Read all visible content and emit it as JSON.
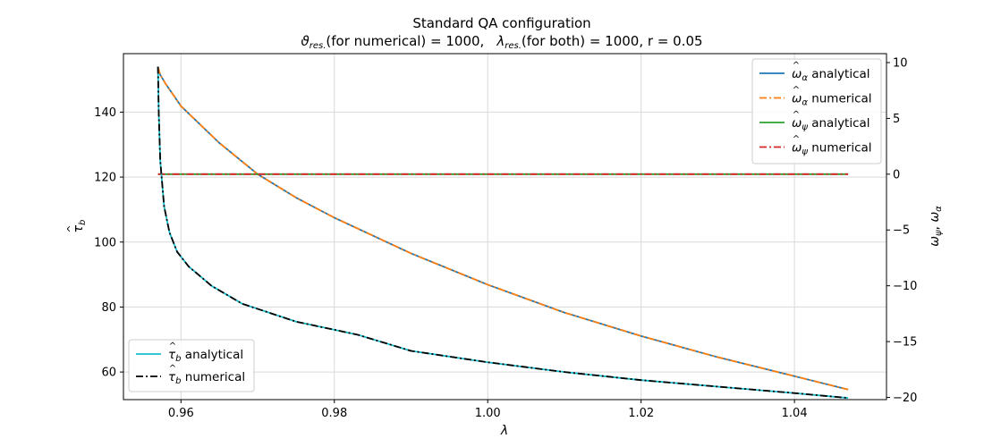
{
  "chart_data": {
    "type": "line",
    "title": "Standard QA configuration",
    "subtitle": {
      "theta_symbol": "ϑ",
      "theta_sub": "res.",
      "theta_rest": "(for numerical) = 1000,",
      "lambda_symbol": "λ",
      "lambda_sub": "res.",
      "lambda_rest": "(for both) = 1000,  r = 0.05"
    },
    "xlabel": "λ",
    "ylabel_left": {
      "symbol": "τ",
      "hat": "^",
      "sub": "b"
    },
    "ylabel_right": {
      "w1": "ω",
      "sub1": "ψ",
      "sep": ", ",
      "w2": "ω",
      "sub2": "α",
      "hat": "^"
    },
    "x_range": [
      0.9525,
      1.052
    ],
    "y_left_range": [
      51.5,
      158
    ],
    "y_right_range": [
      -20.2,
      10.8
    ],
    "x_ticks": [
      "0.96",
      "0.98",
      "1.00",
      "1.02",
      "1.04"
    ],
    "y_left_ticks": [
      "60",
      "80",
      "100",
      "120",
      "140"
    ],
    "y_right_ticks": [
      "10",
      "5",
      "0",
      "−5",
      "−10",
      "−15",
      "−20"
    ],
    "grid": true,
    "legend_right": {
      "placement": "top-right",
      "entries": [
        {
          "sym": "ω",
          "hat": "^",
          "sub": "α",
          "text": "analytical",
          "color": "#1f77b4",
          "dash": "solid"
        },
        {
          "sym": "ω",
          "hat": "^",
          "sub": "α",
          "text": "numerical",
          "color": "#ff7f0e",
          "dash": "dashdot"
        },
        {
          "sym": "ω",
          "hat": "^",
          "sub": "ψ",
          "text": "analytical",
          "color": "#2ca02c",
          "dash": "solid"
        },
        {
          "sym": "ω",
          "hat": "^",
          "sub": "ψ",
          "text": "numerical",
          "color": "#d62728",
          "dash": "dashdot"
        }
      ]
    },
    "legend_left": {
      "placement": "bottom-left",
      "entries": [
        {
          "sym": "τ",
          "hat": "^",
          "sub": "b",
          "text": "analytical",
          "color": "#17becf",
          "dash": "solid"
        },
        {
          "sym": "τ",
          "hat": "^",
          "sub": "b",
          "text": "numerical",
          "color": "#000000",
          "dash": "dashdot"
        }
      ]
    },
    "series": [
      {
        "axis": "right",
        "color": "#1f77b4",
        "style": "solid",
        "x": [
          0.957,
          0.9573,
          0.958,
          0.96,
          0.965,
          0.97,
          0.975,
          0.98,
          0.99,
          1.0,
          1.01,
          1.02,
          1.03,
          1.04,
          1.047
        ],
        "y": [
          9.6,
          8.9,
          8.1,
          6.1,
          2.8,
          0.0,
          -2.1,
          -3.9,
          -7.1,
          -9.9,
          -12.4,
          -14.5,
          -16.4,
          -18.1,
          -19.3
        ]
      },
      {
        "axis": "right",
        "color": "#ff7f0e",
        "style": "dashdot",
        "x": [
          0.957,
          0.9573,
          0.958,
          0.96,
          0.965,
          0.97,
          0.975,
          0.98,
          0.99,
          1.0,
          1.01,
          1.02,
          1.03,
          1.04,
          1.047
        ],
        "y": [
          9.6,
          8.9,
          8.1,
          6.1,
          2.8,
          0.0,
          -2.1,
          -3.9,
          -7.1,
          -9.9,
          -12.4,
          -14.5,
          -16.4,
          -18.1,
          -19.3
        ]
      },
      {
        "axis": "right",
        "color": "#2ca02c",
        "style": "solid",
        "x": [
          0.957,
          1.047
        ],
        "y": [
          0.0,
          0.0
        ]
      },
      {
        "axis": "right",
        "color": "#d62728",
        "style": "dashdot",
        "x": [
          0.957,
          1.047
        ],
        "y": [
          0.0,
          0.0
        ]
      },
      {
        "axis": "left",
        "color": "#17becf",
        "style": "solid",
        "x": [
          0.957,
          0.9571,
          0.9573,
          0.9578,
          0.9585,
          0.9595,
          0.961,
          0.964,
          0.968,
          0.975,
          0.983,
          0.99,
          1.0,
          1.01,
          1.02,
          1.03,
          1.04,
          1.047
        ],
        "y": [
          154,
          140,
          125,
          111,
          103,
          97,
          92.5,
          86.5,
          81,
          75.5,
          71.5,
          66.5,
          63,
          60,
          57.5,
          55.5,
          53.5,
          52
        ]
      },
      {
        "axis": "left",
        "color": "#000000",
        "style": "dashdot",
        "x": [
          0.957,
          0.9571,
          0.9573,
          0.9578,
          0.9585,
          0.9595,
          0.961,
          0.964,
          0.968,
          0.975,
          0.983,
          0.99,
          1.0,
          1.01,
          1.02,
          1.03,
          1.04,
          1.047
        ],
        "y": [
          154,
          140,
          125,
          111,
          103,
          97,
          92.5,
          86.5,
          81,
          75.5,
          71.5,
          66.5,
          63,
          60,
          57.5,
          55.5,
          53.5,
          52
        ]
      }
    ]
  }
}
